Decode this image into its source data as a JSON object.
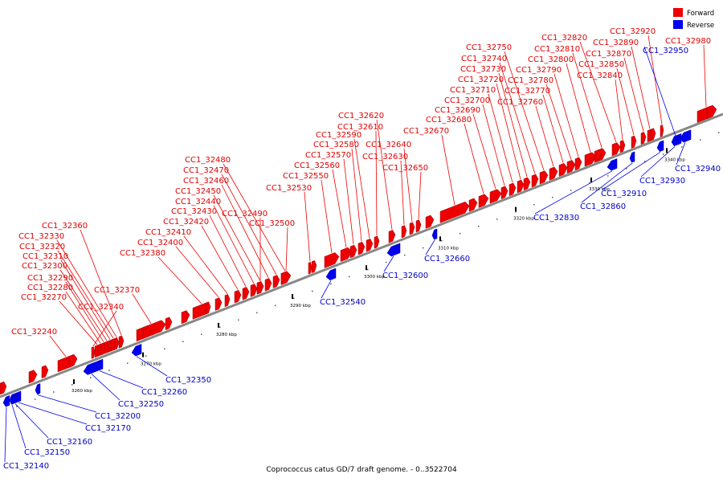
{
  "caption": "Coprococcus catus GD/7 draft genome. - 0..3522704",
  "colors": {
    "forward": "#ee0000",
    "reverse": "#0000ee",
    "axis": "#888888"
  },
  "legend": [
    {
      "label": "Forward",
      "color": "#ee0000"
    },
    {
      "label": "Reverse",
      "color": "#0000ee"
    }
  ],
  "ticks": [
    "3260 kbp",
    "3270 kbp",
    "3280 kbp",
    "3290 kbp",
    "3300 kbp",
    "3310 kbp",
    "3320 kbp",
    "3330 kbp",
    "3340 kbp"
  ],
  "forward_genes": [
    "CC1_32240",
    "CC1_32270",
    "CC1_32280",
    "CC1_32290",
    "CC1_32300",
    "CC1_32310",
    "CC1_32320",
    "CC1_32330",
    "CC1_32340",
    "CC1_32360",
    "CC1_32370",
    "CC1_32380",
    "CC1_32400",
    "CC1_32410",
    "CC1_32420",
    "CC1_32430",
    "CC1_32440",
    "CC1_32450",
    "CC1_32460",
    "CC1_32470",
    "CC1_32480",
    "CC1_32490",
    "CC1_32500",
    "CC1_32530",
    "CC1_32550",
    "CC1_32560",
    "CC1_32570",
    "CC1_32580",
    "CC1_32590",
    "CC1_32610",
    "CC1_32620",
    "CC1_32630",
    "CC1_32640",
    "CC1_32650",
    "CC1_32670",
    "CC1_32680",
    "CC1_32690",
    "CC1_32700",
    "CC1_32710",
    "CC1_32720",
    "CC1_32730",
    "CC1_32740",
    "CC1_32750",
    "CC1_32760",
    "CC1_32770",
    "CC1_32780",
    "CC1_32790",
    "CC1_32800",
    "CC1_32810",
    "CC1_32820",
    "CC1_32840",
    "CC1_32850",
    "CC1_32870",
    "CC1_32890",
    "CC1_32920",
    "CC1_32980"
  ],
  "reverse_genes": [
    "CC1_32140",
    "CC1_32150",
    "CC1_32160",
    "CC1_32170",
    "CC1_32200",
    "CC1_32250",
    "CC1_32260",
    "CC1_32350",
    "CC1_32540",
    "CC1_32600",
    "CC1_32660",
    "CC1_32830",
    "CC1_32860",
    "CC1_32910",
    "CC1_32930",
    "CC1_32940",
    "CC1_32950"
  ]
}
